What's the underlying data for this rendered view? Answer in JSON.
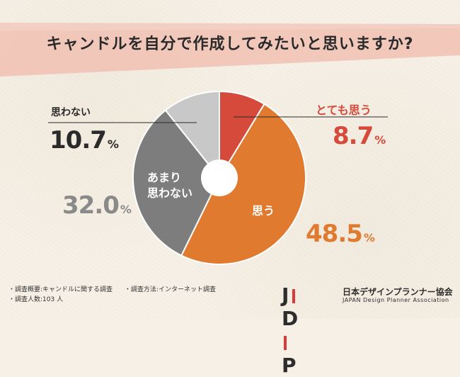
{
  "header": {
    "title": "キャンドルを自分で作成してみたいと思いますか?"
  },
  "chart_data": {
    "type": "pie",
    "title": "キャンドルを自分で作成してみたいと思いますか?",
    "style": "donut",
    "slices": [
      {
        "label": "とても思う",
        "value": 8.7,
        "display": "8.7",
        "color": "#d64a3c"
      },
      {
        "label": "思う",
        "value": 48.5,
        "display": "48.5",
        "color": "#e07a2e"
      },
      {
        "label": "あまり思わない",
        "value": 32.0,
        "display": "32.0",
        "color": "#7d7d7d"
      },
      {
        "label": "思わない",
        "value": 10.7,
        "display": "10.7",
        "color": "#c8c8c8"
      }
    ],
    "percent_sign": "%",
    "inside_labels": {
      "omou": "思う",
      "amari_line1": "あまり",
      "amari_line2": "思わない"
    }
  },
  "notes": {
    "survey_summary": "・調査概要:キャンドルに関する調査",
    "survey_method": "・調査方法:インターネット調査",
    "respondents": "・調査人数:103 人"
  },
  "logo": {
    "mark_j": "J",
    "mark_d": "D",
    "mark_p": "P",
    "name_ja": "日本デザインプランナー協会",
    "name_en": "JAPAN Design Planner Association"
  },
  "colors": {
    "banner": "#f0c5b7",
    "very_much": "#d64a3c",
    "yes": "#e07a2e",
    "not_much": "#7d7d7d",
    "no": "#c8c8c8",
    "dark_text": "#2a2a2a"
  }
}
